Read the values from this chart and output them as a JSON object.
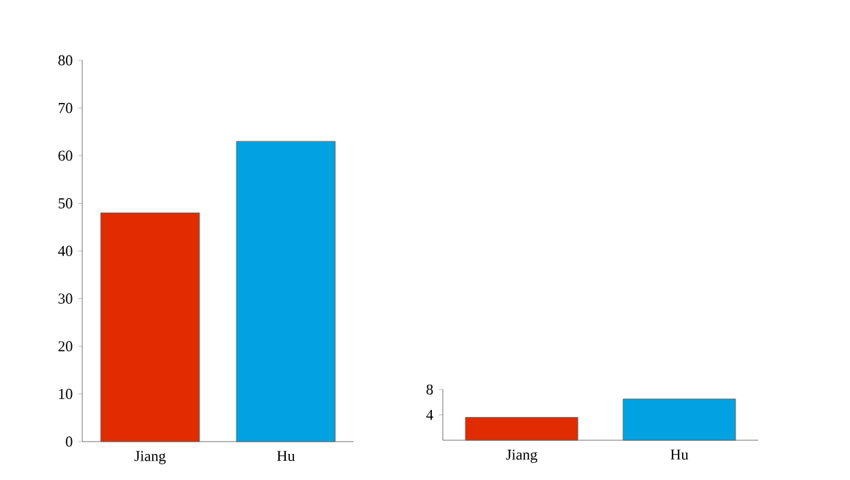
{
  "chart_data": [
    {
      "type": "bar",
      "categories": [
        "Jiang",
        "Hu"
      ],
      "values": [
        48,
        63
      ],
      "colors": [
        "#e02c00",
        "#00a2e2"
      ],
      "ylim": [
        0,
        80
      ],
      "yticks": [
        0,
        10,
        20,
        30,
        40,
        50,
        60,
        70,
        80
      ]
    },
    {
      "type": "bar",
      "categories": [
        "Jiang",
        "Hu"
      ],
      "values": [
        3.6,
        6.5
      ],
      "colors": [
        "#e02c00",
        "#00a2e2"
      ],
      "ylim": [
        0,
        8
      ],
      "yticks": [
        4,
        8
      ]
    }
  ]
}
